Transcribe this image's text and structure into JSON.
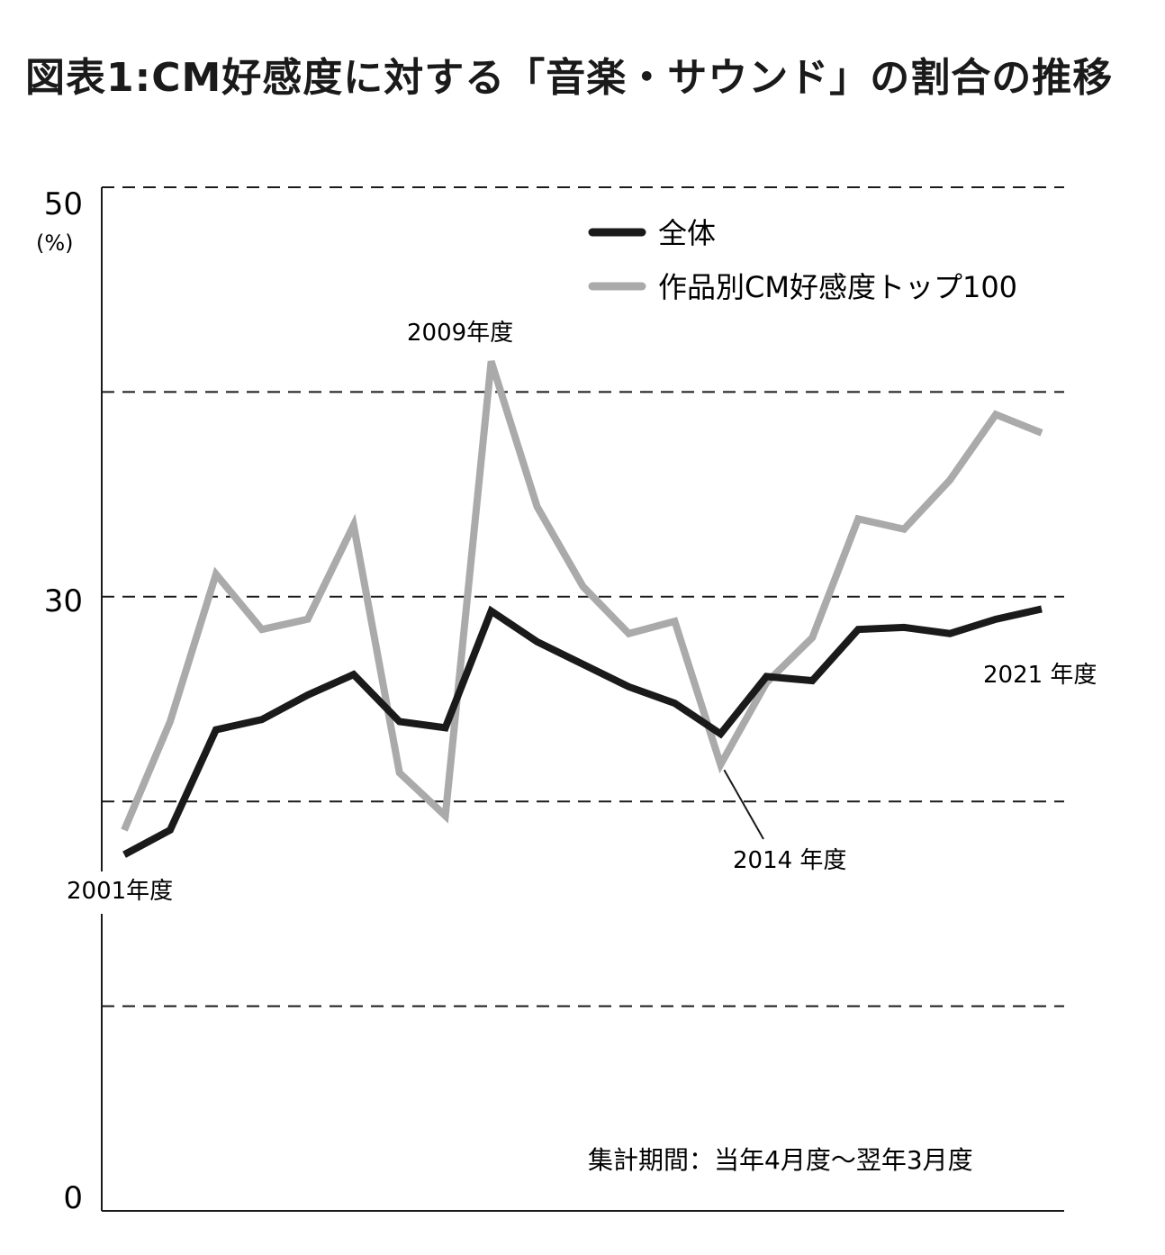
{
  "title": "図表1:CM好感度に対する「音楽・サウンド」の割合の推移",
  "note": "集計期間：当年4月度〜翌年3月度",
  "chart_data": {
    "type": "line",
    "title": "図表1:CM好感度に対する「音楽・サウンド」の割合の推移",
    "ylabel": "(%)",
    "ylim": [
      0,
      50
    ],
    "y_tick_labels": [
      "50",
      "30",
      "0"
    ],
    "grid": "horizontal dashed",
    "legend": "top-right",
    "x": [
      2001,
      2002,
      2003,
      2004,
      2005,
      2006,
      2007,
      2008,
      2009,
      2010,
      2011,
      2012,
      2013,
      2014,
      2015,
      2016,
      2017,
      2018,
      2019,
      2020,
      2021
    ],
    "series": [
      {
        "name": "全体",
        "color": "#1a1a1a",
        "values": [
          17.4,
          18.6,
          23.5,
          24.0,
          25.2,
          26.2,
          23.9,
          23.6,
          29.3,
          27.8,
          26.7,
          25.6,
          24.8,
          23.3,
          26.1,
          25.9,
          28.4,
          28.5,
          28.2,
          28.9,
          29.4
        ]
      },
      {
        "name": "作品別CM好感度トップ100",
        "color": "#aaaaaa",
        "values": [
          18.6,
          23.9,
          31.1,
          28.4,
          28.9,
          33.5,
          21.4,
          19.3,
          41.5,
          34.4,
          30.5,
          28.2,
          28.8,
          21.8,
          25.8,
          28.0,
          33.8,
          33.3,
          35.7,
          38.9,
          38.0
        ]
      }
    ],
    "annotations": [
      {
        "text": "2001年度",
        "x": 2001
      },
      {
        "text": "2009年度",
        "x": 2009
      },
      {
        "text": "2014 年度",
        "x": 2014
      },
      {
        "text": "2021 年度",
        "x": 2021
      }
    ]
  }
}
